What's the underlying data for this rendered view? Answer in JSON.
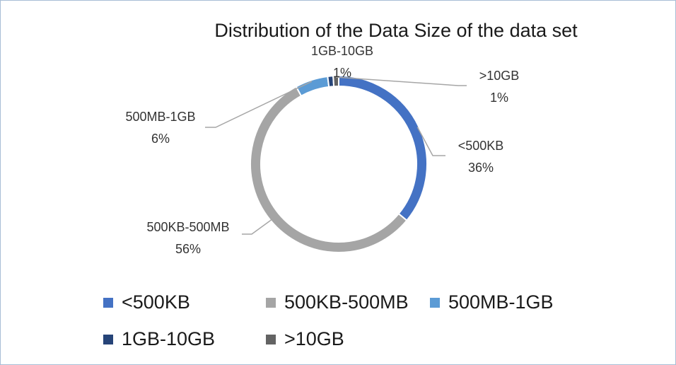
{
  "chart_data": {
    "type": "pie",
    "variant": "doughnut",
    "title": "Distribution of the Data Size of the data set",
    "categories": [
      "<500KB",
      "500KB-500MB",
      "500MB-1GB",
      "1GB-10GB",
      ">10GB"
    ],
    "values": [
      36,
      56,
      6,
      1,
      1
    ],
    "value_labels": [
      "36%",
      "56%",
      "6%",
      "1%",
      "1%"
    ],
    "colors": [
      "#4472C4",
      "#A5A5A5",
      "#5B9BD5",
      "#264478",
      "#636363"
    ],
    "legend_position": "bottom"
  }
}
